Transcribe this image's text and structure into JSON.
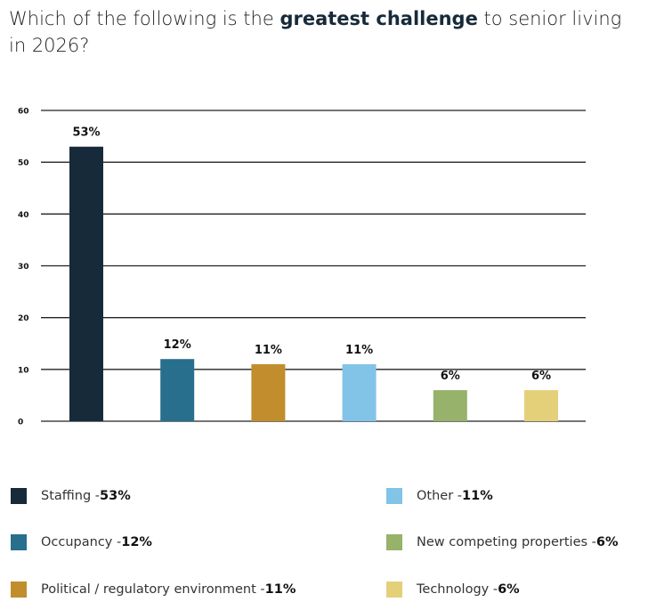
{
  "title": {
    "before": "Which of the following is the ",
    "bold": "greatest challenge",
    "after": " to senior living in 2026?"
  },
  "chart_data": {
    "type": "bar",
    "categories": [
      "Staffing",
      "Occupancy",
      "Political / regulatory environment",
      "Other",
      "New competing properties",
      "Technology"
    ],
    "values": [
      53,
      12,
      11,
      11,
      6,
      6
    ],
    "data_labels": [
      "53%",
      "12%",
      "11%",
      "11%",
      "6%",
      "6%"
    ],
    "colors": [
      "#172a3a",
      "#276f8c",
      "#c18d2d",
      "#82c3e8",
      "#96b26b",
      "#e5d07a"
    ],
    "ylim": [
      0,
      60
    ],
    "yticks": [
      0,
      10,
      20,
      30,
      40,
      50,
      60
    ],
    "grid": true,
    "legend_placement": "bottom",
    "legend": [
      {
        "label": "Staffing - ",
        "value": "53%"
      },
      {
        "label": "Occupancy - ",
        "value": "12%"
      },
      {
        "label": "Political / regulatory environment - ",
        "value": "11%"
      },
      {
        "label": "Other - ",
        "value": "11%"
      },
      {
        "label": "New competing properties - ",
        "value": "6%"
      },
      {
        "label": "Technology - ",
        "value": "6%"
      }
    ]
  }
}
